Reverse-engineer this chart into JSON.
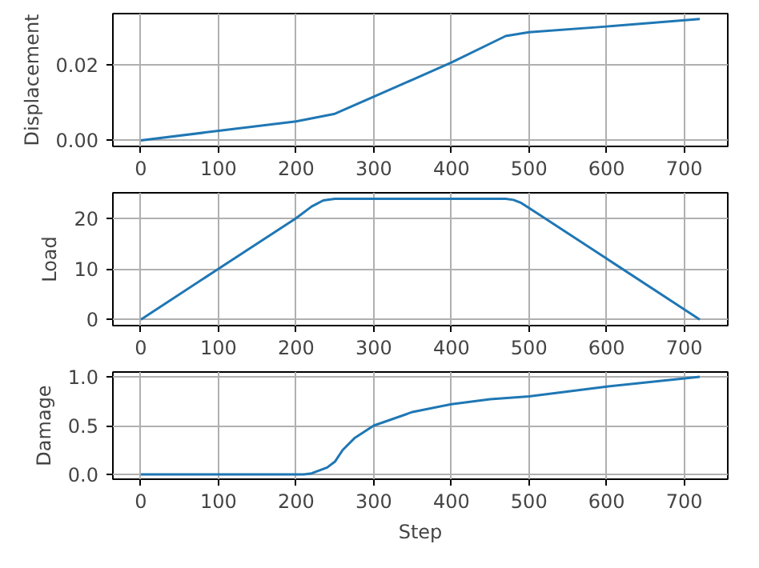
{
  "chart_data": [
    {
      "type": "line",
      "ylabel": "Displacement",
      "x": [
        0,
        100,
        200,
        250,
        300,
        350,
        400,
        470,
        500,
        600,
        720
      ],
      "series": [
        {
          "color": "#1f77b4",
          "values": [
            0,
            0.0025,
            0.005,
            0.007,
            0.0115,
            0.016,
            0.0205,
            0.0275,
            0.0285,
            0.03,
            0.032
          ]
        }
      ],
      "xlim": [
        -36,
        756
      ],
      "ylim": [
        -0.0016,
        0.0334
      ],
      "xticks": [
        0,
        100,
        200,
        300,
        400,
        500,
        600,
        700
      ],
      "yticks": [
        {
          "value": 0,
          "label": "0.00"
        },
        {
          "value": 0.02,
          "label": "0.02"
        }
      ],
      "grid": true
    },
    {
      "type": "line",
      "ylabel": "Load",
      "x": [
        0,
        100,
        200,
        220,
        235,
        250,
        470,
        480,
        490,
        510,
        600,
        720
      ],
      "series": [
        {
          "color": "#1f77b4",
          "values": [
            0,
            10,
            20,
            22.3,
            23.5,
            23.8,
            23.8,
            23.6,
            23,
            21,
            12,
            0
          ]
        }
      ],
      "xlim": [
        -36,
        756
      ],
      "ylim": [
        -1.2,
        25
      ],
      "xticks": [
        0,
        100,
        200,
        300,
        400,
        500,
        600,
        700
      ],
      "yticks": [
        0,
        10,
        20
      ],
      "grid": true
    },
    {
      "type": "line",
      "xlabel": "Step",
      "ylabel": "Damage",
      "x": [
        0,
        210,
        220,
        240,
        250,
        260,
        275,
        300,
        350,
        400,
        450,
        500,
        600,
        720
      ],
      "series": [
        {
          "color": "#1f77b4",
          "values": [
            0,
            0,
            0.01,
            0.07,
            0.13,
            0.25,
            0.37,
            0.5,
            0.64,
            0.72,
            0.77,
            0.8,
            0.9,
            1.0
          ]
        }
      ],
      "xlim": [
        -36,
        756
      ],
      "ylim": [
        -0.05,
        1.05
      ],
      "xticks": [
        0,
        100,
        200,
        300,
        400,
        500,
        600,
        700
      ],
      "yticks": [
        {
          "value": 0,
          "label": "0.0"
        },
        {
          "value": 0.5,
          "label": "0.5"
        },
        {
          "value": 1,
          "label": "1.0"
        }
      ],
      "grid": true
    }
  ]
}
